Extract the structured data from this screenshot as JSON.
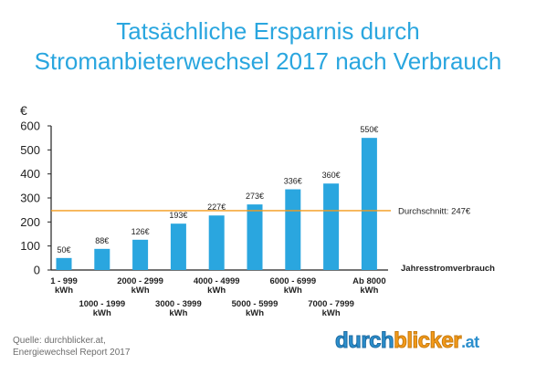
{
  "title_line1": "Tatsächliche Ersparnis durch",
  "title_line2": "Stromanbieterwechsel 2017 nach Verbrauch",
  "chart_data": {
    "type": "bar",
    "categories": [
      [
        "1 - 999",
        "kWh"
      ],
      [
        "1000 - 1999",
        "kWh"
      ],
      [
        "2000 - 2999",
        "kWh"
      ],
      [
        "3000 - 3999",
        "kWh"
      ],
      [
        "4000 - 4999",
        "kWh"
      ],
      [
        "5000 - 5999",
        "kWh"
      ],
      [
        "6000 - 6999",
        "kWh"
      ],
      [
        "7000 - 7999",
        "kWh"
      ],
      [
        "Ab 8000",
        "kWh"
      ]
    ],
    "values": [
      50,
      88,
      126,
      193,
      227,
      273,
      336,
      360,
      550
    ],
    "data_labels": [
      "50€",
      "88€",
      "126€",
      "193€",
      "227€",
      "273€",
      "336€",
      "360€",
      "550€"
    ],
    "ylabel": "€",
    "xlabel": "Jahresstromverbrauch",
    "ylim": [
      0,
      600
    ],
    "yticks": [
      0,
      100,
      200,
      300,
      400,
      500,
      600
    ],
    "average": {
      "value": 247,
      "label": "Durchschnitt: 247€"
    },
    "grid": false,
    "bar_color": "#2aa6df",
    "average_color": "#f39a1b"
  },
  "source_line1": "Quelle: durchblicker.at,",
  "source_line2": "Energiewechsel Report 2017",
  "logo": {
    "part1": "durch",
    "part2": "blicker",
    "part3": ".at"
  }
}
